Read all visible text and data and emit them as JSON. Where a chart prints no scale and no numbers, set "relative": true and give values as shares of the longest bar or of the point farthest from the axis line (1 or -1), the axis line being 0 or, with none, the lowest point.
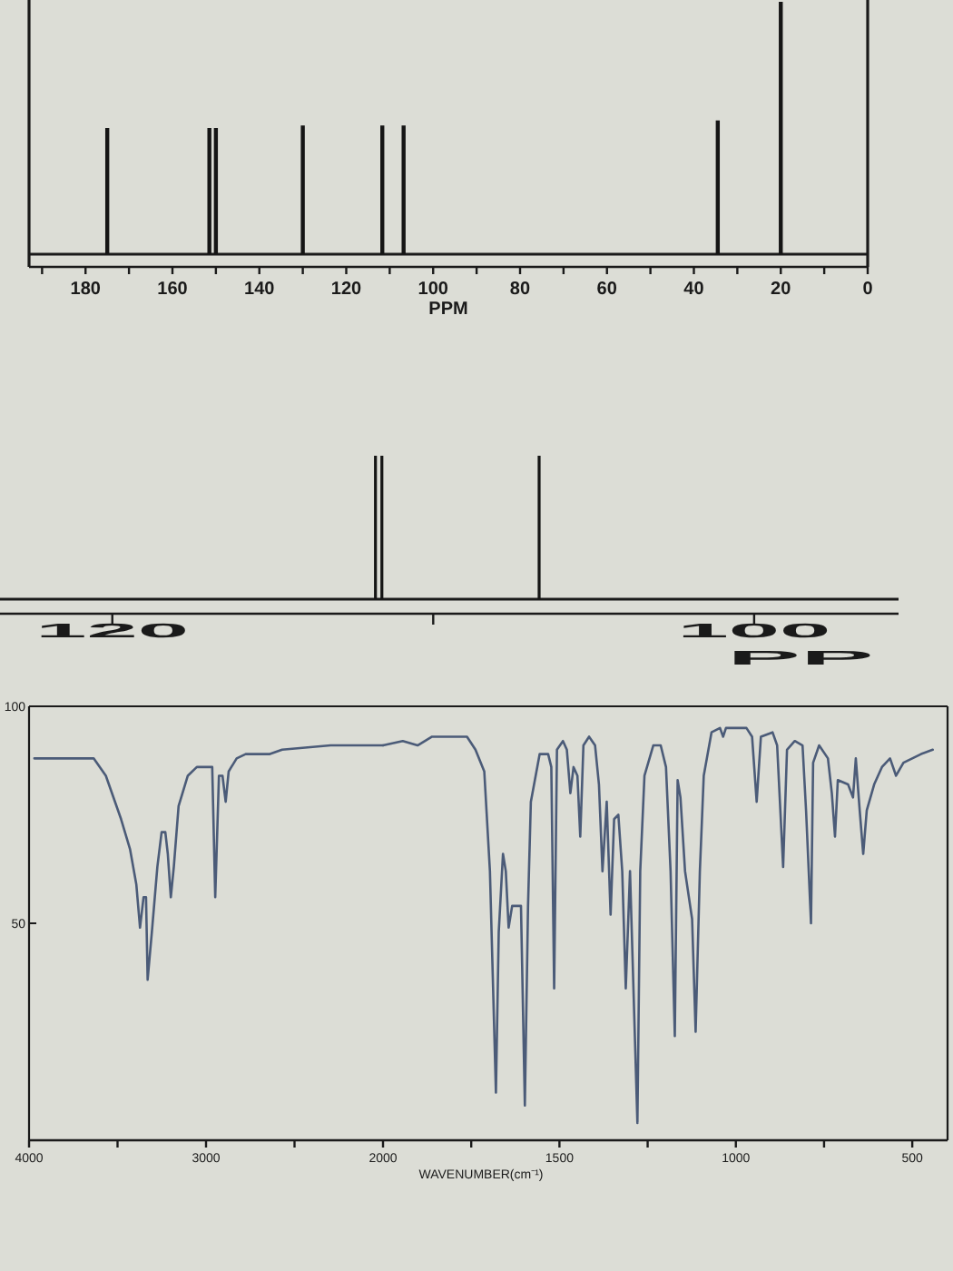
{
  "chart_data": [
    {
      "type": "bar",
      "x": [
        175,
        151.5,
        150,
        130,
        111.7,
        106.8,
        34.5,
        20
      ],
      "values": [
        0.5,
        0.5,
        0.5,
        0.51,
        0.51,
        0.51,
        0.53,
        1
      ],
      "relative": true,
      "color": "#151515",
      "xlim": [
        193,
        0
      ],
      "xticks": [
        {
          "value": 190,
          "label": null
        },
        180,
        {
          "value": 170,
          "label": null
        },
        160,
        {
          "value": 150,
          "label": null
        },
        140,
        {
          "value": 130,
          "label": null
        },
        120,
        {
          "value": 110,
          "label": null
        },
        100,
        {
          "value": 90,
          "label": null
        },
        80,
        {
          "value": 70,
          "label": null
        },
        60,
        {
          "value": 50,
          "label": null
        },
        40,
        {
          "value": 30,
          "label": null
        },
        20,
        {
          "value": 10,
          "label": null
        },
        0
      ],
      "xlabel": "PPM"
    },
    {
      "type": "bar",
      "x": [
        111.8,
        111.6,
        106.7
      ],
      "values": [
        1,
        1,
        1
      ],
      "relative": true,
      "color": "#151515",
      "xlim": [
        123.5,
        95.5
      ],
      "xticks": [
        120,
        {
          "value": 110,
          "label": null
        },
        100
      ],
      "xlabel": "PP"
    },
    {
      "type": "line",
      "color": "#4b5b78",
      "xlim": [
        4000,
        2000
      ],
      "xticks": [
        4000,
        {
          "value": 3500,
          "label": null
        },
        3000,
        {
          "value": 2500,
          "label": null
        },
        2000
      ],
      "ylim": [
        0,
        100
      ],
      "yticks": [
        50,
        100
      ],
      "x": [
        3970,
        3635,
        3566,
        3480,
        3429,
        3394,
        3373,
        3353,
        3339,
        3330,
        3306,
        3275,
        3251,
        3230,
        3216,
        3199,
        3182,
        3155,
        3103,
        3052,
        2989,
        2965,
        2948,
        2927,
        2907,
        2889,
        2872,
        2827,
        2776,
        2639,
        2570,
        2296,
        2090,
        2000
      ],
      "values": [
        88,
        88,
        84,
        74,
        67,
        59,
        49,
        56,
        56,
        37,
        48,
        63,
        71,
        71,
        66,
        56,
        63,
        77,
        84,
        86,
        86,
        86,
        56,
        84,
        84,
        78,
        85,
        88,
        89,
        89,
        90,
        91,
        91,
        91
      ]
    },
    {
      "type": "line",
      "color": "#4b5b78",
      "xlim": [
        2000,
        400
      ],
      "xticks": [
        {
          "value": 1750,
          "label": null
        },
        1500,
        {
          "value": 1250,
          "label": null
        },
        1000,
        {
          "value": 750,
          "label": null
        },
        500
      ],
      "ylim": [
        0,
        100
      ],
      "tick_labels": "x",
      "xlabel": "WAVENUMBER(cm⁻¹)",
      "x": [
        2000,
        1944,
        1902,
        1861,
        1762,
        1738,
        1713,
        1697,
        1680,
        1672,
        1660,
        1652,
        1644,
        1634,
        1619,
        1609,
        1598,
        1589,
        1581,
        1556,
        1532,
        1523,
        1515,
        1507,
        1490,
        1479,
        1469,
        1460,
        1449,
        1441,
        1432,
        1416,
        1399,
        1388,
        1378,
        1366,
        1355,
        1345,
        1333,
        1322,
        1312,
        1300,
        1279,
        1271,
        1259,
        1234,
        1213,
        1198,
        1185,
        1173,
        1165,
        1157,
        1144,
        1124,
        1114,
        1102,
        1091,
        1069,
        1045,
        1036,
        1028,
        970,
        954,
        941,
        929,
        896,
        883,
        866,
        855,
        833,
        811,
        801,
        787,
        781,
        764,
        739,
        728,
        719,
        711,
        682,
        668,
        660,
        649,
        639,
        629,
        608,
        586,
        563,
        546,
        525,
        500,
        475,
        442
      ],
      "values": [
        91,
        92,
        91,
        93,
        93,
        90,
        85,
        62,
        11,
        48,
        66,
        62,
        49,
        54,
        54,
        54,
        8,
        54,
        78,
        89,
        89,
        86,
        35,
        90,
        92,
        90,
        80,
        86,
        84,
        70,
        91,
        93,
        91,
        82,
        62,
        78,
        52,
        74,
        75,
        62,
        35,
        62,
        4,
        62,
        84,
        91,
        91,
        86,
        62,
        24,
        83,
        79,
        62,
        51,
        25,
        62,
        84,
        94,
        95,
        93,
        95,
        95,
        93,
        78,
        93,
        94,
        91,
        63,
        90,
        92,
        91,
        76,
        50,
        87,
        91,
        88,
        80,
        70,
        83,
        82,
        79,
        88,
        76,
        66,
        76,
        82,
        86,
        88,
        84,
        87,
        88,
        89,
        90
      ]
    }
  ]
}
